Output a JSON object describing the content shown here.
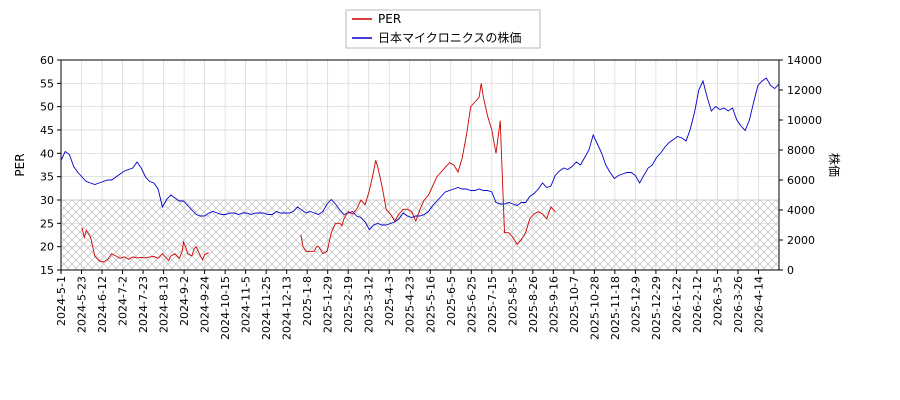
{
  "chart_data": {
    "type": "line",
    "title": "",
    "legend": {
      "placement": "top-center"
    },
    "grid": true,
    "hatched_band": {
      "axis": "left",
      "from": 15,
      "to": 30
    },
    "x_tick_labels": [
      "2024-5-1",
      "2024-5-23",
      "2024-6-12",
      "2024-7-2",
      "2024-7-23",
      "2024-8-13",
      "2024-9-2",
      "2024-9-24",
      "2024-10-15",
      "2024-11-5",
      "2024-11-25",
      "2024-12-13",
      "2025-1-8",
      "2025-1-29",
      "2025-2-19",
      "2025-3-12",
      "2025-4-3",
      "2025-4-23",
      "2025-5-16",
      "2025-6-5",
      "2025-6-25",
      "2025-7-15",
      "2025-8-5",
      "2025-8-26",
      "2025-9-16",
      "2025-10-7",
      "2025-10-28",
      "2025-11-18",
      "2025-12-9",
      "2025-12-29",
      "2026-1-22",
      "2026-2-12",
      "2026-3-5",
      "2026-3-26",
      "2026-4-14"
    ],
    "y_left": {
      "label": "PER",
      "range": [
        15,
        60
      ],
      "ticks": [
        15,
        20,
        25,
        30,
        35,
        40,
        45,
        50,
        55,
        60
      ]
    },
    "y_right": {
      "label": "株価",
      "range": [
        0,
        14000
      ],
      "ticks": [
        0,
        2000,
        4000,
        6000,
        8000,
        10000,
        12000,
        14000
      ]
    },
    "series": [
      {
        "name": "PER",
        "axis": "left",
        "color": "#cc0000",
        "segments": [
          [
            [
              5,
              24
            ],
            [
              5.5,
              22
            ],
            [
              6,
              23.5
            ],
            [
              7,
              22
            ],
            [
              8,
              18
            ],
            [
              9,
              17
            ],
            [
              10,
              16.7
            ],
            [
              11,
              17.2
            ],
            [
              12,
              18.5
            ],
            [
              13,
              18
            ],
            [
              14,
              17.5
            ],
            [
              15,
              17.8
            ],
            [
              16,
              17.3
            ],
            [
              17,
              17.8
            ],
            [
              18,
              17.6
            ],
            [
              19,
              17.7
            ],
            [
              20,
              17.6
            ],
            [
              21,
              17.8
            ],
            [
              22,
              17.9
            ],
            [
              23,
              17.5
            ],
            [
              24,
              18.5
            ],
            [
              25,
              17.5
            ],
            [
              25.5,
              17
            ],
            [
              26,
              18
            ],
            [
              27,
              18.5
            ],
            [
              28,
              17.5
            ],
            [
              28.7,
              19
            ],
            [
              29,
              21
            ],
            [
              29.5,
              20
            ],
            [
              30,
              18.5
            ],
            [
              31,
              18
            ],
            [
              31.5,
              19.5
            ],
            [
              32,
              20
            ],
            [
              33,
              18
            ],
            [
              33.5,
              17.2
            ],
            [
              34,
              18.3
            ],
            [
              35,
              18.7
            ]
          ],
          [
            [
              56.8,
              22.5
            ],
            [
              57.3,
              20
            ],
            [
              58,
              19
            ],
            [
              59,
              19
            ],
            [
              60,
              19
            ],
            [
              60.5,
              20
            ],
            [
              61,
              20
            ],
            [
              62,
              18.5
            ],
            [
              63,
              19
            ],
            [
              64,
              23
            ],
            [
              65,
              25
            ],
            [
              66,
              25
            ],
            [
              66.5,
              24.5
            ],
            [
              67,
              26
            ],
            [
              68,
              27.5
            ],
            [
              69,
              27
            ],
            [
              70,
              28
            ],
            [
              71,
              30
            ],
            [
              72,
              29
            ],
            [
              73,
              32
            ],
            [
              74,
              36
            ],
            [
              74.5,
              38.5
            ],
            [
              75,
              37
            ],
            [
              76,
              33
            ],
            [
              77,
              28
            ],
            [
              78,
              27
            ],
            [
              79,
              25.5
            ],
            [
              80,
              27
            ],
            [
              81,
              28
            ],
            [
              82,
              28
            ],
            [
              83,
              27.5
            ],
            [
              84,
              25.5
            ],
            [
              85,
              28
            ],
            [
              86,
              30
            ],
            [
              87,
              31
            ],
            [
              88,
              33
            ],
            [
              89,
              35
            ],
            [
              90,
              36
            ],
            [
              91,
              37
            ],
            [
              92,
              38
            ],
            [
              93,
              37.5
            ],
            [
              94,
              36
            ],
            [
              95,
              39
            ],
            [
              96,
              44
            ],
            [
              97,
              50
            ],
            [
              98,
              51
            ],
            [
              99,
              52
            ],
            [
              99.5,
              55
            ],
            [
              100,
              52
            ],
            [
              101,
              48
            ],
            [
              102,
              45
            ],
            [
              103,
              40
            ],
            [
              104,
              47
            ],
            [
              105,
              23
            ],
            [
              106,
              23
            ],
            [
              107,
              22
            ],
            [
              108,
              20.5
            ],
            [
              109,
              21.5
            ],
            [
              110,
              23
            ],
            [
              111,
              26
            ],
            [
              112,
              27
            ],
            [
              113,
              27.5
            ],
            [
              114,
              27
            ],
            [
              115,
              26
            ],
            [
              116,
              28.5
            ],
            [
              117,
              27.5
            ]
          ]
        ]
      },
      {
        "name": "日本マイクロニクスの株価",
        "axis": "right",
        "color": "#0000cc",
        "points": [
          [
            0,
            7300
          ],
          [
            1,
            7900
          ],
          [
            2,
            7700
          ],
          [
            3,
            6900
          ],
          [
            4,
            6500
          ],
          [
            5,
            6200
          ],
          [
            6,
            5900
          ],
          [
            7,
            5800
          ],
          [
            8,
            5700
          ],
          [
            9,
            5800
          ],
          [
            10,
            5900
          ],
          [
            11,
            6000
          ],
          [
            12,
            6000
          ],
          [
            13,
            6200
          ],
          [
            14,
            6400
          ],
          [
            15,
            6600
          ],
          [
            16,
            6700
          ],
          [
            17,
            6800
          ],
          [
            18,
            7200
          ],
          [
            19,
            6800
          ],
          [
            20,
            6200
          ],
          [
            21,
            5900
          ],
          [
            22,
            5800
          ],
          [
            23,
            5400
          ],
          [
            24,
            4200
          ],
          [
            25,
            4700
          ],
          [
            26,
            5000
          ],
          [
            27,
            4800
          ],
          [
            28,
            4600
          ],
          [
            29,
            4600
          ],
          [
            30,
            4300
          ],
          [
            31,
            4000
          ],
          [
            32,
            3700
          ],
          [
            33,
            3600
          ],
          [
            34,
            3600
          ],
          [
            35,
            3800
          ],
          [
            36,
            3900
          ],
          [
            37,
            3800
          ],
          [
            38,
            3700
          ],
          [
            39,
            3700
          ],
          [
            40,
            3800
          ],
          [
            41,
            3800
          ],
          [
            42,
            3700
          ],
          [
            43,
            3800
          ],
          [
            44,
            3800
          ],
          [
            45,
            3700
          ],
          [
            46,
            3800
          ],
          [
            47,
            3800
          ],
          [
            48,
            3800
          ],
          [
            49,
            3700
          ],
          [
            50,
            3700
          ],
          [
            51,
            3900
          ],
          [
            52,
            3800
          ],
          [
            53,
            3800
          ],
          [
            54,
            3800
          ],
          [
            55,
            3900
          ],
          [
            56,
            4200
          ],
          [
            57,
            4000
          ],
          [
            58,
            3800
          ],
          [
            59,
            3900
          ],
          [
            60,
            3800
          ],
          [
            61,
            3700
          ],
          [
            62,
            3900
          ],
          [
            63,
            4400
          ],
          [
            64,
            4700
          ],
          [
            65,
            4400
          ],
          [
            66,
            4000
          ],
          [
            67,
            3700
          ],
          [
            68,
            3800
          ],
          [
            69,
            3900
          ],
          [
            70,
            3600
          ],
          [
            71,
            3500
          ],
          [
            72,
            3200
          ],
          [
            73,
            2700
          ],
          [
            74,
            3000
          ],
          [
            75,
            3100
          ],
          [
            76,
            3000
          ],
          [
            77,
            3000
          ],
          [
            78,
            3100
          ],
          [
            79,
            3200
          ],
          [
            80,
            3400
          ],
          [
            81,
            3800
          ],
          [
            82,
            3600
          ],
          [
            83,
            3500
          ],
          [
            84,
            3600
          ],
          [
            85,
            3600
          ],
          [
            86,
            3700
          ],
          [
            87,
            3900
          ],
          [
            88,
            4300
          ],
          [
            89,
            4600
          ],
          [
            90,
            4900
          ],
          [
            91,
            5200
          ],
          [
            92,
            5300
          ],
          [
            93,
            5400
          ],
          [
            94,
            5500
          ],
          [
            95,
            5400
          ],
          [
            96,
            5400
          ],
          [
            97,
            5300
          ],
          [
            98,
            5300
          ],
          [
            99,
            5400
          ],
          [
            100,
            5300
          ],
          [
            101,
            5300
          ],
          [
            102,
            5200
          ],
          [
            103,
            4500
          ],
          [
            104,
            4400
          ],
          [
            105,
            4400
          ],
          [
            106,
            4500
          ],
          [
            107,
            4400
          ],
          [
            108,
            4300
          ],
          [
            109,
            4500
          ],
          [
            110,
            4500
          ],
          [
            111,
            4900
          ],
          [
            112,
            5100
          ],
          [
            113,
            5400
          ],
          [
            114,
            5800
          ],
          [
            115,
            5500
          ],
          [
            116,
            5600
          ],
          [
            117,
            6300
          ],
          [
            118,
            6600
          ],
          [
            119,
            6800
          ],
          [
            120,
            6700
          ],
          [
            121,
            6900
          ],
          [
            122,
            7200
          ],
          [
            123,
            7000
          ],
          [
            124,
            7500
          ],
          [
            125,
            8000
          ],
          [
            126,
            9000
          ],
          [
            127,
            8400
          ],
          [
            128,
            7800
          ],
          [
            129,
            7000
          ],
          [
            130,
            6500
          ],
          [
            131,
            6100
          ],
          [
            132,
            6300
          ],
          [
            133,
            6400
          ],
          [
            134,
            6500
          ],
          [
            135,
            6500
          ],
          [
            136,
            6300
          ],
          [
            137,
            5800
          ],
          [
            138,
            6300
          ],
          [
            139,
            6800
          ],
          [
            140,
            7000
          ],
          [
            141,
            7500
          ],
          [
            142,
            7800
          ],
          [
            143,
            8200
          ],
          [
            144,
            8500
          ],
          [
            145,
            8700
          ],
          [
            146,
            8900
          ],
          [
            147,
            8800
          ],
          [
            148,
            8600
          ],
          [
            149,
            9400
          ],
          [
            150,
            10500
          ],
          [
            151,
            12000
          ],
          [
            152,
            12600
          ],
          [
            153,
            11500
          ],
          [
            154,
            10600
          ],
          [
            155,
            10900
          ],
          [
            156,
            10700
          ],
          [
            157,
            10800
          ],
          [
            158,
            10600
          ],
          [
            159,
            10800
          ],
          [
            160,
            10000
          ],
          [
            161,
            9600
          ],
          [
            162,
            9300
          ],
          [
            163,
            10000
          ],
          [
            164,
            11200
          ],
          [
            165,
            12300
          ],
          [
            166,
            12600
          ],
          [
            167,
            12800
          ],
          [
            168,
            12300
          ],
          [
            169,
            12100
          ],
          [
            170,
            12400
          ]
        ]
      }
    ]
  }
}
